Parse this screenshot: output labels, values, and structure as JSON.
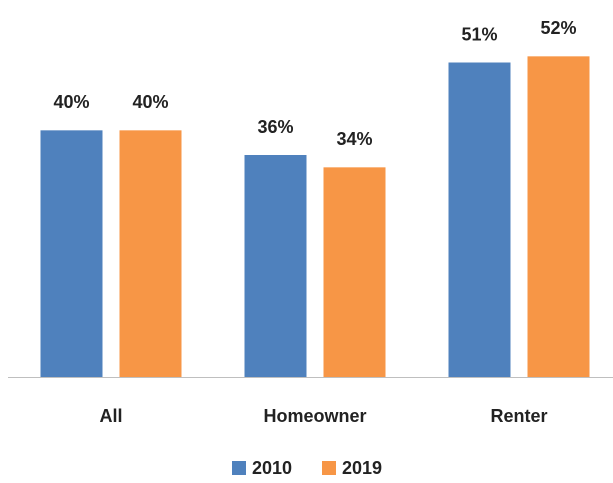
{
  "chart_data": {
    "type": "bar",
    "categories": [
      "All",
      "Homeowner",
      "Renter"
    ],
    "series": [
      {
        "name": "2010",
        "color": "#4f81bd",
        "values": [
          40,
          36,
          51
        ],
        "value_labels": [
          "40%",
          "36%",
          "51%"
        ]
      },
      {
        "name": "2019",
        "color": "#f79646",
        "values": [
          40,
          34,
          52
        ],
        "value_labels": [
          "40%",
          "34%",
          "52%"
        ]
      }
    ],
    "ylim": [
      0,
      60
    ],
    "legend": "bottom"
  }
}
